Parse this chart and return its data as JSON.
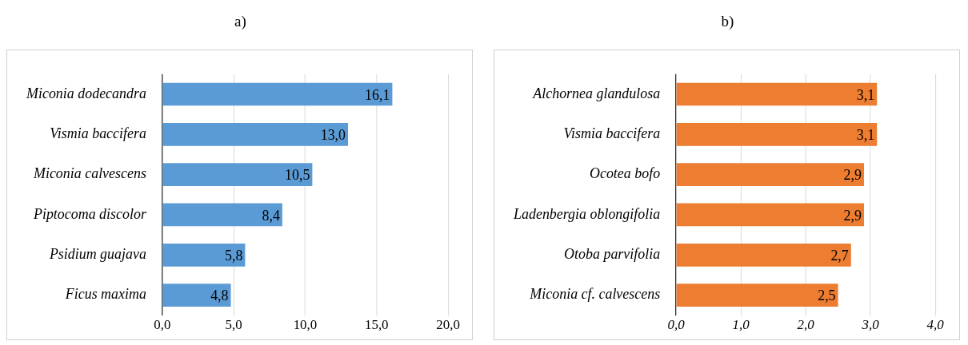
{
  "chart_data": [
    {
      "type": "bar",
      "title": "a)",
      "orientation": "horizontal",
      "categories": [
        "Miconia dodecandra",
        "Vismia baccifera",
        "Miconia calvescens",
        "Piptocoma discolor",
        "Psidium guajava",
        "Ficus maxima"
      ],
      "values": [
        16.1,
        13.0,
        10.5,
        8.4,
        5.8,
        4.8
      ],
      "color": "#5b9bd5",
      "value_labels": [
        "16,1",
        "13,0",
        "10,5",
        "8,4",
        "5,8",
        "4,8"
      ],
      "xlim": [
        0,
        20
      ],
      "xticks": [
        {
          "value": 0,
          "label": "0,0"
        },
        {
          "value": 5,
          "label": "5,0"
        },
        {
          "value": 10,
          "label": "10,0"
        },
        {
          "value": 15,
          "label": "15,0"
        },
        {
          "value": 20,
          "label": "20,0"
        }
      ],
      "grid": "x",
      "legend": false
    },
    {
      "type": "bar",
      "title": "b)",
      "orientation": "horizontal",
      "categories": [
        "Alchornea glandulosa",
        "Vismia baccifera",
        "Ocotea bofo",
        "Ladenbergia oblongifolia",
        "Otoba parvifolia",
        "Miconia cf. calvescens"
      ],
      "values": [
        3.1,
        3.1,
        2.9,
        2.9,
        2.7,
        2.5
      ],
      "color": "#ed7d31",
      "value_labels": [
        "3,1",
        "3,1",
        "2,9",
        "2,9",
        "2,7",
        "2,5"
      ],
      "xlim": [
        0,
        4
      ],
      "xticks": [
        {
          "value": 0,
          "label": "0,0"
        },
        {
          "value": 1,
          "label": "1,0"
        },
        {
          "value": 2,
          "label": "2,0"
        },
        {
          "value": 3,
          "label": "3,0"
        },
        {
          "value": 4,
          "label": "4,0"
        }
      ],
      "grid": "x",
      "legend": false
    }
  ]
}
